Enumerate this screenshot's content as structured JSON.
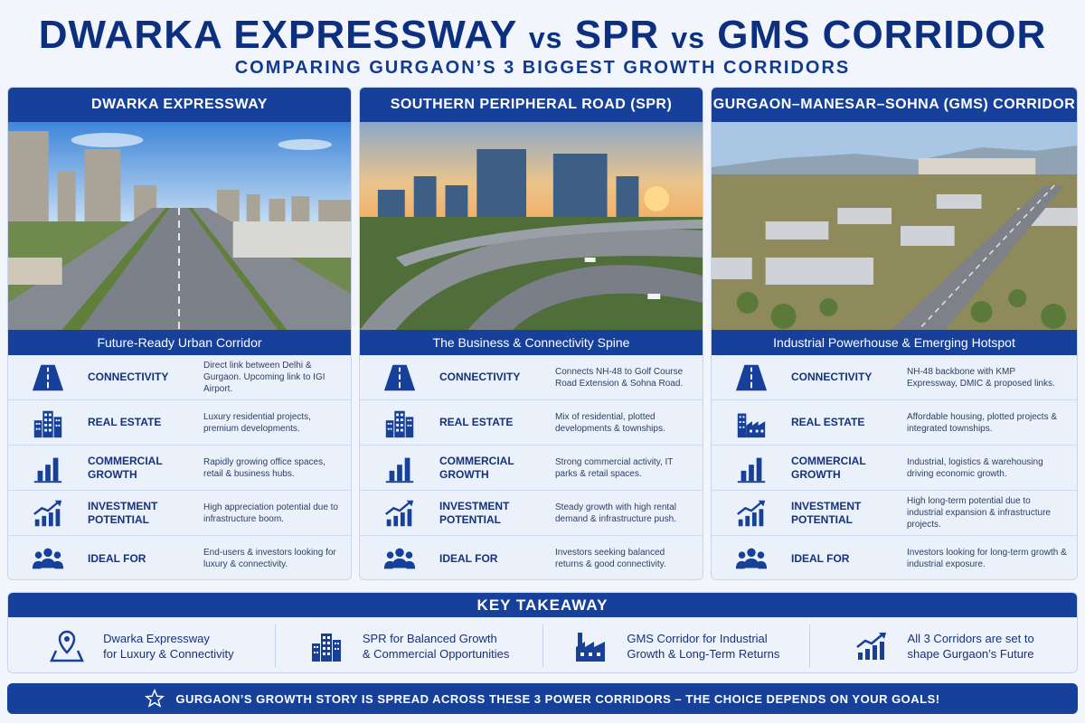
{
  "header": {
    "title_part1": "DWARKA EXPRESSWAY",
    "vs1": "vs",
    "title_part2": "SPR",
    "vs2": "vs",
    "title_part3": "GMS CORRIDOR",
    "subtitle": "COMPARING GURGAON’S 3 BIGGEST GROWTH CORRIDORS"
  },
  "columns": [
    {
      "heading": "DWARKA EXPRESSWAY",
      "tagline": "Future-Ready Urban Corridor",
      "rows": [
        {
          "label": "CONNECTIVITY",
          "desc": "Direct link between Delhi & Gurgaon. Upcoming link to IGI Airport.",
          "icon": "road-icon"
        },
        {
          "label": "REAL ESTATE",
          "desc": "Luxury residential projects, premium developments.",
          "icon": "buildings-icon"
        },
        {
          "label": "COMMERCIAL GROWTH",
          "desc": "Rapidly growing office spaces, retail & business hubs.",
          "icon": "bar-chart-icon"
        },
        {
          "label": "INVESTMENT POTENTIAL",
          "desc": "High appreciation potential due to infrastructure boom.",
          "icon": "trend-up-icon"
        },
        {
          "label": "IDEAL FOR",
          "desc": "End-users & investors looking for luxury & connectivity.",
          "icon": "people-icon"
        }
      ]
    },
    {
      "heading": "SOUTHERN PERIPHERAL ROAD (SPR)",
      "tagline": "The Business & Connectivity Spine",
      "rows": [
        {
          "label": "CONNECTIVITY",
          "desc": "Connects NH-48 to Golf Course Road Extension & Sohna Road.",
          "icon": "road-icon"
        },
        {
          "label": "REAL ESTATE",
          "desc": "Mix of residential, plotted developments & townships.",
          "icon": "buildings-icon"
        },
        {
          "label": "COMMERCIAL GROWTH",
          "desc": "Strong commercial activity, IT parks & retail spaces.",
          "icon": "bar-chart-icon"
        },
        {
          "label": "INVESTMENT POTENTIAL",
          "desc": "Steady growth with high rental demand & infrastructure push.",
          "icon": "trend-up-icon"
        },
        {
          "label": "IDEAL FOR",
          "desc": "Investors seeking balanced returns & good connectivity.",
          "icon": "people-icon"
        }
      ]
    },
    {
      "heading": "GURGAON–MANESAR–SOHNA (GMS) CORRIDOR",
      "tagline": "Industrial Powerhouse & Emerging Hotspot",
      "rows": [
        {
          "label": "CONNECTIVITY",
          "desc": "NH-48 backbone with KMP Expressway, DMIC & proposed links.",
          "icon": "road-icon"
        },
        {
          "label": "REAL ESTATE",
          "desc": "Affordable housing, plotted projects & integrated townships.",
          "icon": "factory-buildings-icon"
        },
        {
          "label": "COMMERCIAL GROWTH",
          "desc": "Industrial, logistics & warehousing driving economic growth.",
          "icon": "bar-chart-icon"
        },
        {
          "label": "INVESTMENT POTENTIAL",
          "desc": "High long-term potential due to industrial expansion & infrastructure projects.",
          "icon": "trend-up-icon"
        },
        {
          "label": "IDEAL FOR",
          "desc": "Investors looking for long-term growth & industrial exposure.",
          "icon": "people-icon"
        }
      ]
    }
  ],
  "takeaway": {
    "heading": "KEY TAKEAWAY",
    "items": [
      {
        "line1": "Dwarka Expressway",
        "line2": "for Luxury & Connectivity",
        "icon": "map-pin-icon"
      },
      {
        "line1": "SPR for Balanced Growth",
        "line2": "& Commercial Opportunities",
        "icon": "buildings-icon"
      },
      {
        "line1": "GMS Corridor for Industrial",
        "line2": "Growth & Long-Term Returns",
        "icon": "factory-icon"
      },
      {
        "line1": "All 3 Corridors are set to",
        "line2": "shape Gurgaon’s Future",
        "icon": "trend-up-icon"
      }
    ]
  },
  "footer": {
    "text": "GURGAON’S GROWTH STORY IS SPREAD ACROSS THESE 3 POWER CORRIDORS – THE CHOICE DEPENDS ON YOUR GOALS!",
    "icon": "star-icon"
  },
  "colors": {
    "navy": "#16409a",
    "title": "#0d2f80",
    "panel": "#eaf1fb"
  }
}
